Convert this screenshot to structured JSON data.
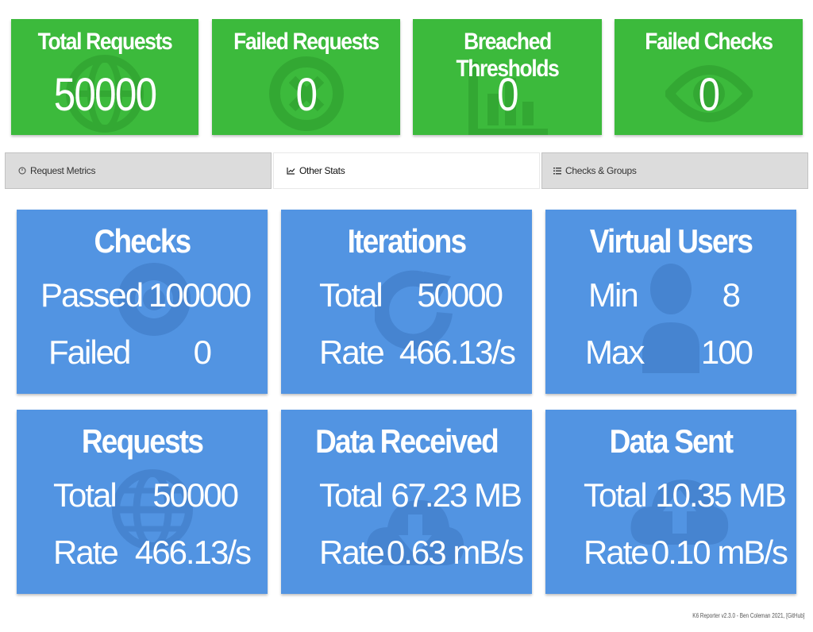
{
  "summary": [
    {
      "title": "Total Requests",
      "value": "50000"
    },
    {
      "title": "Failed Requests",
      "value": "0"
    },
    {
      "title": "Breached Thresholds",
      "value": "0"
    },
    {
      "title": "Failed Checks",
      "value": "0"
    }
  ],
  "tabs": [
    {
      "label": "Request Metrics",
      "icon": "clock-icon",
      "active": false
    },
    {
      "label": "Other Stats",
      "icon": "chart-icon",
      "active": true
    },
    {
      "label": "Checks & Groups",
      "icon": "list-icon",
      "active": false
    }
  ],
  "cards": [
    {
      "title": "Checks",
      "icon": "eye-icon",
      "rows": [
        {
          "label": "Passed",
          "value": "100000"
        },
        {
          "label": "Failed",
          "value": "0"
        }
      ]
    },
    {
      "title": "Iterations",
      "icon": "refresh-icon",
      "rows": [
        {
          "label": "Total",
          "value": "50000"
        },
        {
          "label": "Rate",
          "value": "466.13/s"
        }
      ]
    },
    {
      "title": "Virtual Users",
      "icon": "user-icon",
      "rows": [
        {
          "label": "Min",
          "value": "8"
        },
        {
          "label": "Max",
          "value": "100"
        }
      ]
    },
    {
      "title": "Requests",
      "icon": "globe-icon",
      "rows": [
        {
          "label": "Total",
          "value": "50000"
        },
        {
          "label": "Rate",
          "value": "466.13/s"
        }
      ]
    },
    {
      "title": "Data Received",
      "icon": "cloud-download-icon",
      "rows": [
        {
          "label": "Total",
          "value": "67.23 MB"
        },
        {
          "label": "Rate",
          "value": "0.63 mB/s"
        }
      ]
    },
    {
      "title": "Data Sent",
      "icon": "cloud-upload-icon",
      "rows": [
        {
          "label": "Total",
          "value": "10.35 MB"
        },
        {
          "label": "Rate",
          "value": "0.10 mB/s"
        }
      ]
    }
  ],
  "colors": {
    "green": "#3cba3c",
    "blue": "#5294e2",
    "tab_bg": "#dcdcdc"
  },
  "footer": "K6 Reporter v2.3.0 - Ben Coleman 2021, [GitHub]"
}
